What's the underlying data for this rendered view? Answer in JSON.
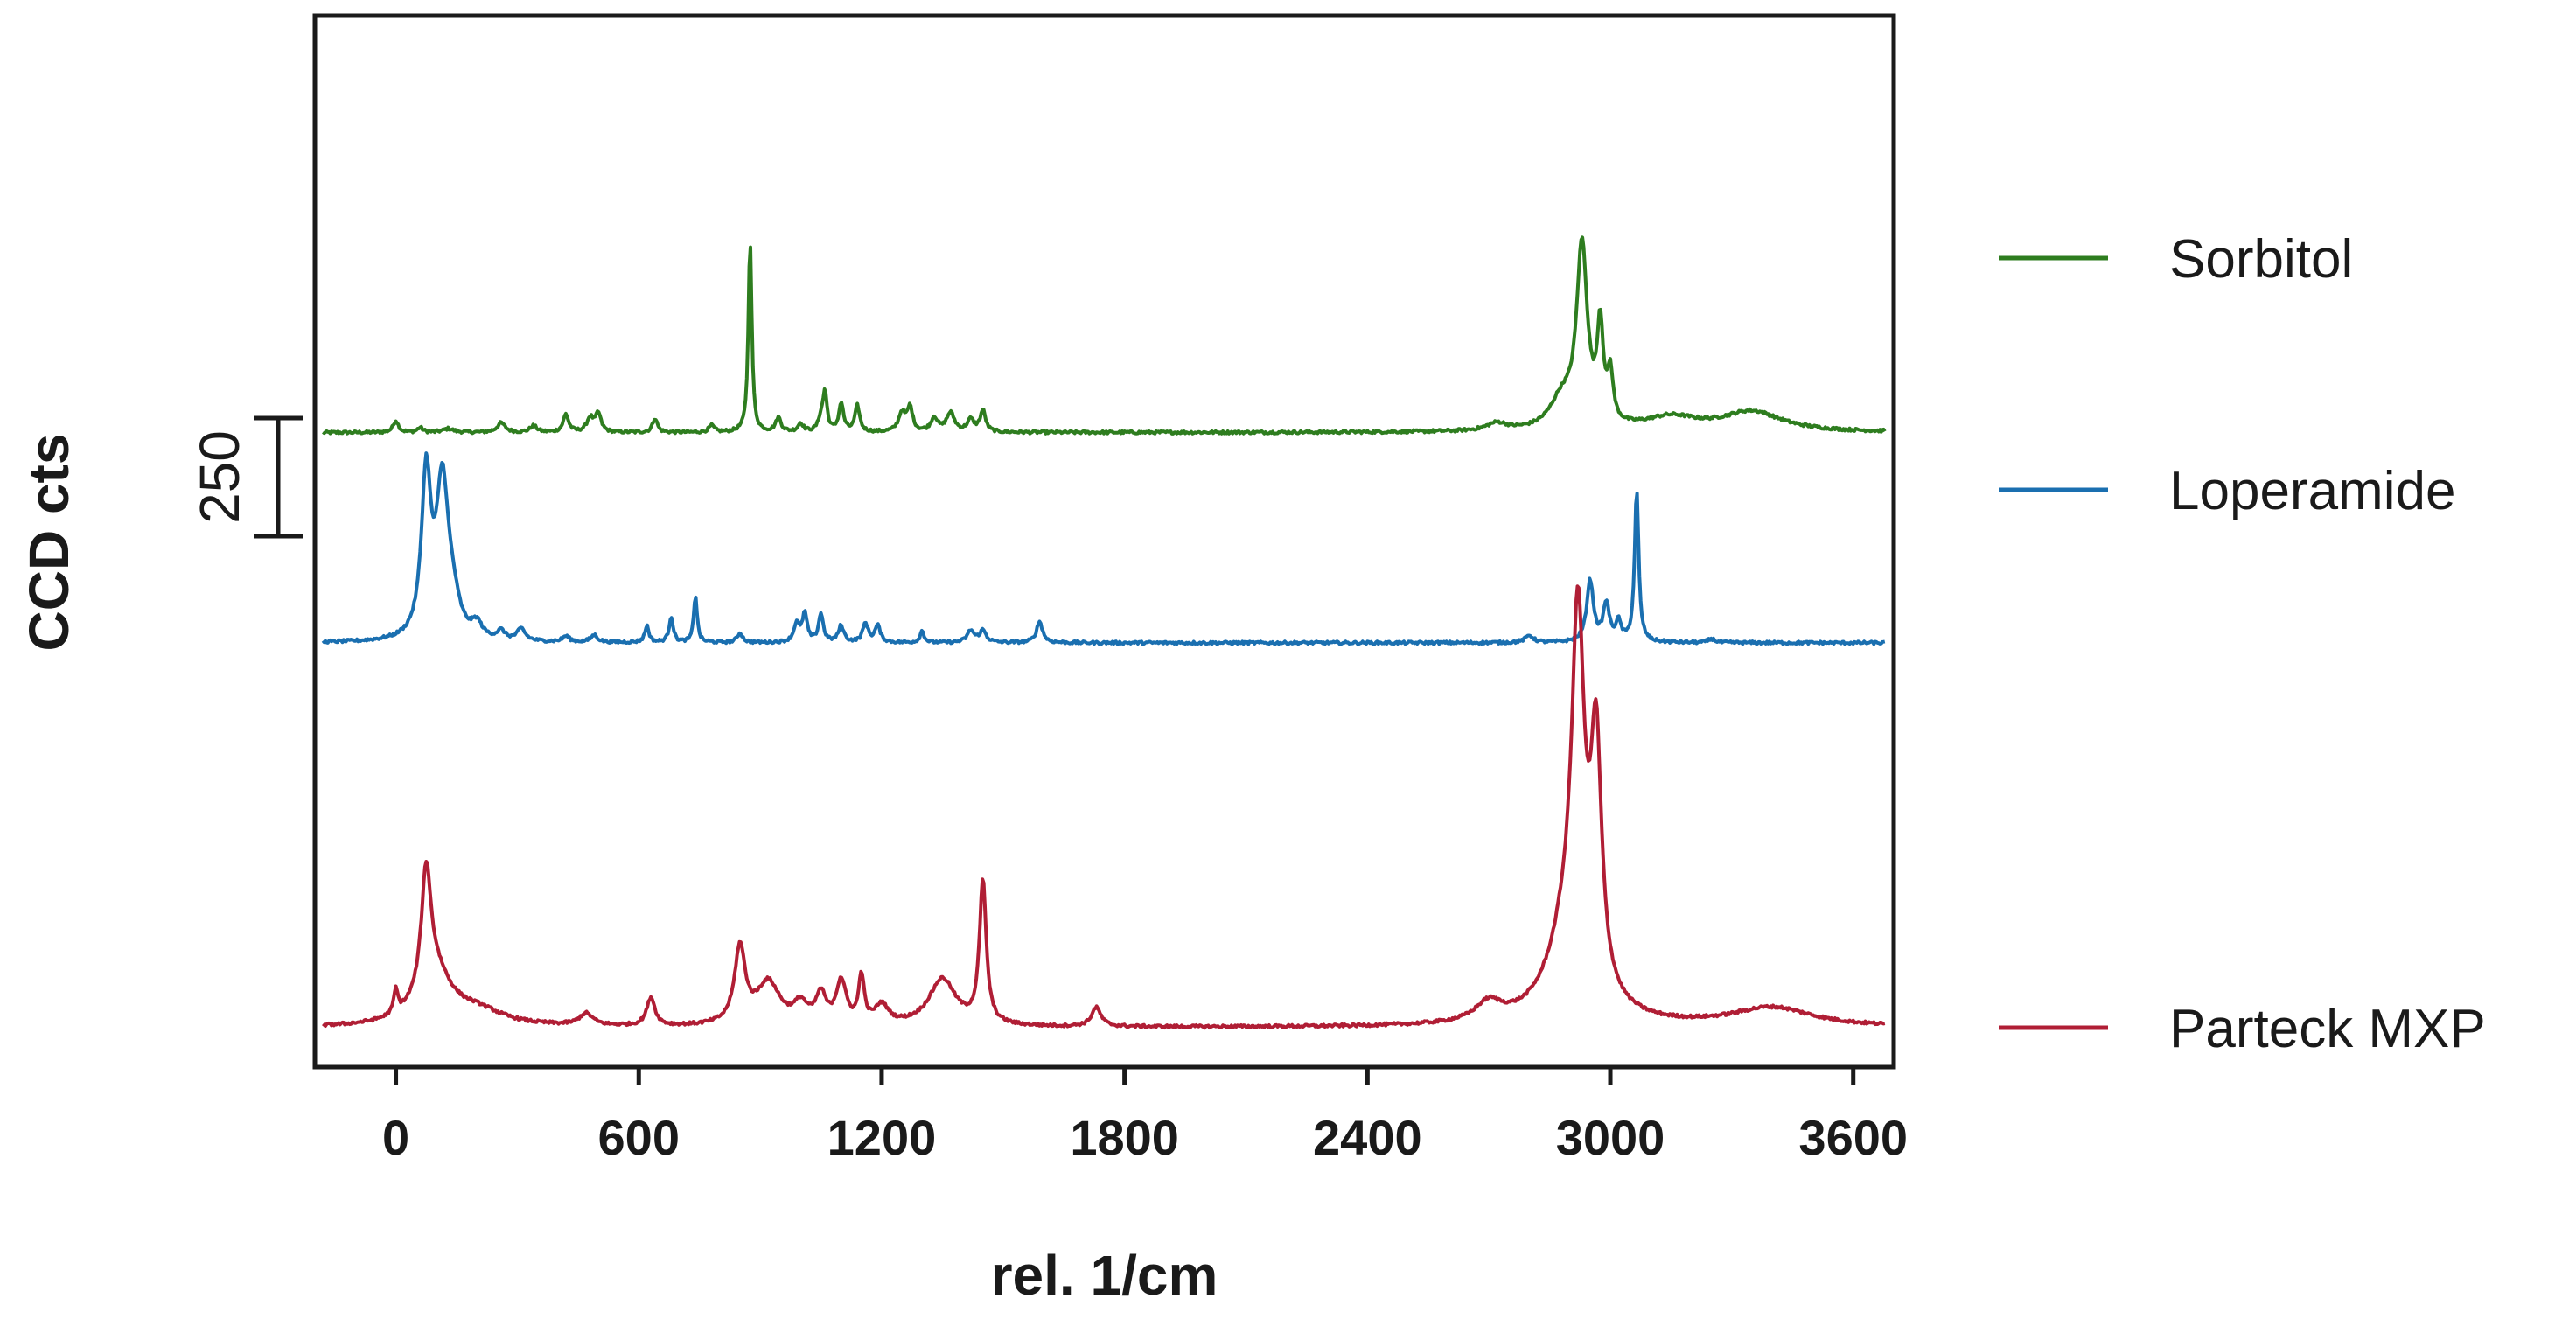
{
  "chart_data": {
    "type": "line",
    "title": "",
    "xlabel": "rel. 1/cm",
    "ylabel": "CCD cts",
    "xlim": [
      -200,
      3700
    ],
    "x_ticks": [
      "0",
      "600",
      "1200",
      "1800",
      "2400",
      "3000",
      "3600"
    ],
    "x_tick_values": [
      0,
      600,
      1200,
      1800,
      2400,
      3000,
      3600
    ],
    "y_ticks_shown": false,
    "grid": false,
    "legend_position": "right",
    "scale_bar": {
      "label": "250",
      "value": 250
    },
    "series": [
      {
        "name": "Sorbitol",
        "color": "#2e7d1f",
        "offset": 1260,
        "peaks": [
          [
            0,
            25,
            8
          ],
          [
            60,
            10,
            8
          ],
          [
            130,
            8,
            15
          ],
          [
            260,
            20,
            12
          ],
          [
            340,
            14,
            10
          ],
          [
            420,
            38,
            8
          ],
          [
            480,
            30,
            10
          ],
          [
            500,
            38,
            8
          ],
          [
            640,
            30,
            7
          ],
          [
            780,
            14,
            8
          ],
          [
            875,
            410,
            5
          ],
          [
            945,
            30,
            8
          ],
          [
            1000,
            18,
            8
          ],
          [
            1050,
            25,
            8
          ],
          [
            1060,
            80,
            6
          ],
          [
            1100,
            60,
            7
          ],
          [
            1140,
            55,
            7
          ],
          [
            1250,
            40,
            10
          ],
          [
            1270,
            50,
            8
          ],
          [
            1330,
            30,
            10
          ],
          [
            1370,
            40,
            12
          ],
          [
            1420,
            25,
            10
          ],
          [
            1450,
            45,
            8
          ],
          [
            2720,
            16,
            30
          ],
          [
            2880,
            60,
            35
          ],
          [
            2930,
            380,
            16
          ],
          [
            2975,
            200,
            9
          ],
          [
            3000,
            100,
            8
          ],
          [
            3150,
            28,
            80
          ],
          [
            3350,
            42,
            90
          ]
        ]
      },
      {
        "name": "Loperamide",
        "color": "#1a6fb0",
        "offset": 815,
        "peaks": [
          [
            75,
            340,
            14
          ],
          [
            115,
            320,
            18
          ],
          [
            140,
            60,
            20
          ],
          [
            200,
            30,
            15
          ],
          [
            260,
            18,
            12
          ],
          [
            310,
            25,
            12
          ],
          [
            420,
            12,
            10
          ],
          [
            490,
            15,
            10
          ],
          [
            620,
            35,
            6
          ],
          [
            680,
            55,
            6
          ],
          [
            740,
            100,
            5
          ],
          [
            850,
            20,
            8
          ],
          [
            990,
            40,
            8
          ],
          [
            1010,
            60,
            7
          ],
          [
            1050,
            60,
            7
          ],
          [
            1100,
            35,
            8
          ],
          [
            1160,
            40,
            8
          ],
          [
            1190,
            35,
            8
          ],
          [
            1300,
            25,
            6
          ],
          [
            1420,
            25,
            10
          ],
          [
            1450,
            25,
            10
          ],
          [
            1590,
            45,
            9
          ],
          [
            2800,
            15,
            12
          ],
          [
            2950,
            130,
            10
          ],
          [
            2990,
            80,
            9
          ],
          [
            3020,
            40,
            8
          ],
          [
            3065,
            320,
            6
          ],
          [
            3250,
            8,
            10
          ]
        ]
      },
      {
        "name": "Parteck MXP",
        "color": "#b01e35",
        "offset": 0,
        "peaks": [
          [
            0,
            50,
            6
          ],
          [
            75,
            250,
            14
          ],
          [
            95,
            110,
            50
          ],
          [
            200,
            30,
            80
          ],
          [
            470,
            25,
            20
          ],
          [
            630,
            60,
            12
          ],
          [
            850,
            160,
            16
          ],
          [
            920,
            90,
            35
          ],
          [
            1000,
            40,
            20
          ],
          [
            1050,
            60,
            15
          ],
          [
            1100,
            90,
            15
          ],
          [
            1150,
            100,
            8
          ],
          [
            1200,
            40,
            20
          ],
          [
            1350,
            100,
            40
          ],
          [
            1450,
            300,
            10
          ],
          [
            1730,
            40,
            14
          ],
          [
            2700,
            40,
            40
          ],
          [
            2900,
            200,
            60
          ],
          [
            2920,
            700,
            18
          ],
          [
            2965,
            500,
            16
          ],
          [
            3400,
            40,
            120
          ]
        ]
      }
    ]
  }
}
